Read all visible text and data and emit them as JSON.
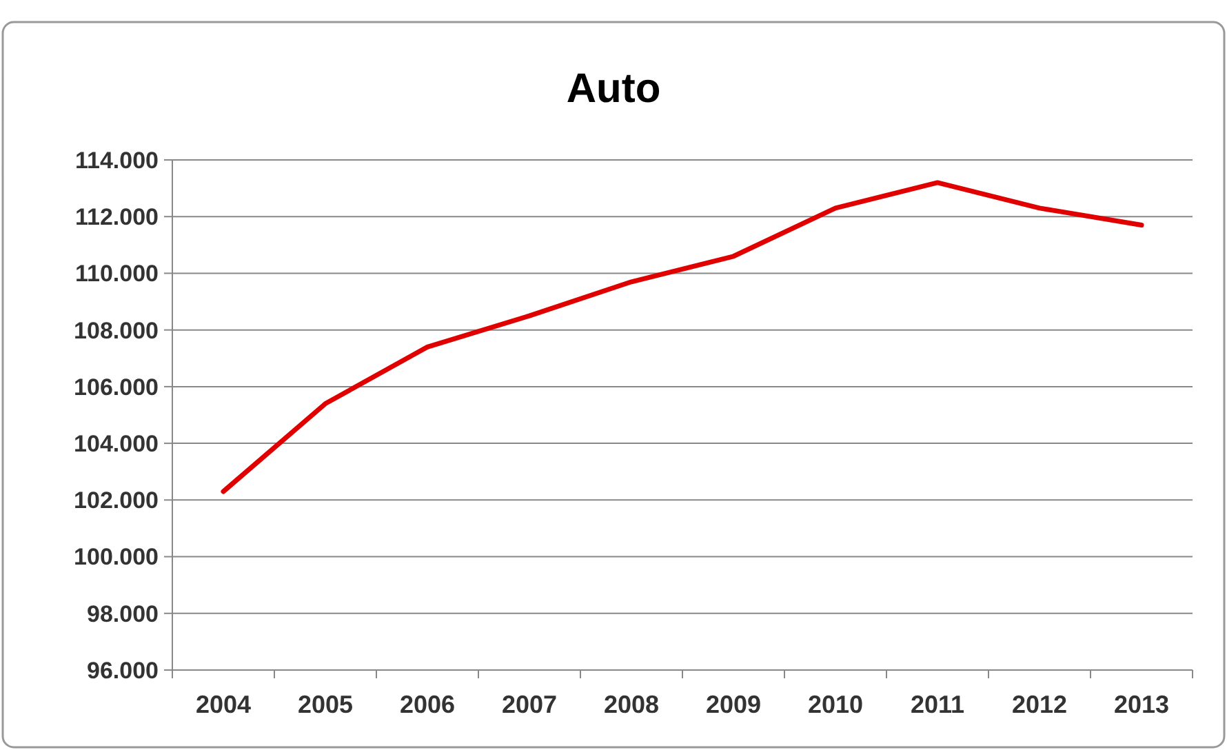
{
  "chart_data": {
    "type": "line",
    "title": "Auto",
    "categories": [
      "2004",
      "2005",
      "2006",
      "2007",
      "2008",
      "2009",
      "2010",
      "2011",
      "2012",
      "2013"
    ],
    "series": [
      {
        "color": "#e00000",
        "values": [
          102300,
          105400,
          107400,
          108500,
          109700,
          110600,
          112300,
          113200,
          112300,
          111700
        ]
      }
    ],
    "ylim": [
      96000,
      114000
    ],
    "yticks": [
      {
        "value": 96000,
        "label": "96.000"
      },
      {
        "value": 98000,
        "label": "98.000"
      },
      {
        "value": 100000,
        "label": "100.000"
      },
      {
        "value": 102000,
        "label": "102.000"
      },
      {
        "value": 104000,
        "label": "104.000"
      },
      {
        "value": 106000,
        "label": "106.000"
      },
      {
        "value": 108000,
        "label": "108.000"
      },
      {
        "value": 110000,
        "label": "110.000"
      },
      {
        "value": 112000,
        "label": "112.000"
      },
      {
        "value": 114000,
        "label": "114.000"
      }
    ],
    "grid": "y",
    "marker": "none",
    "line_style": "solid"
  }
}
